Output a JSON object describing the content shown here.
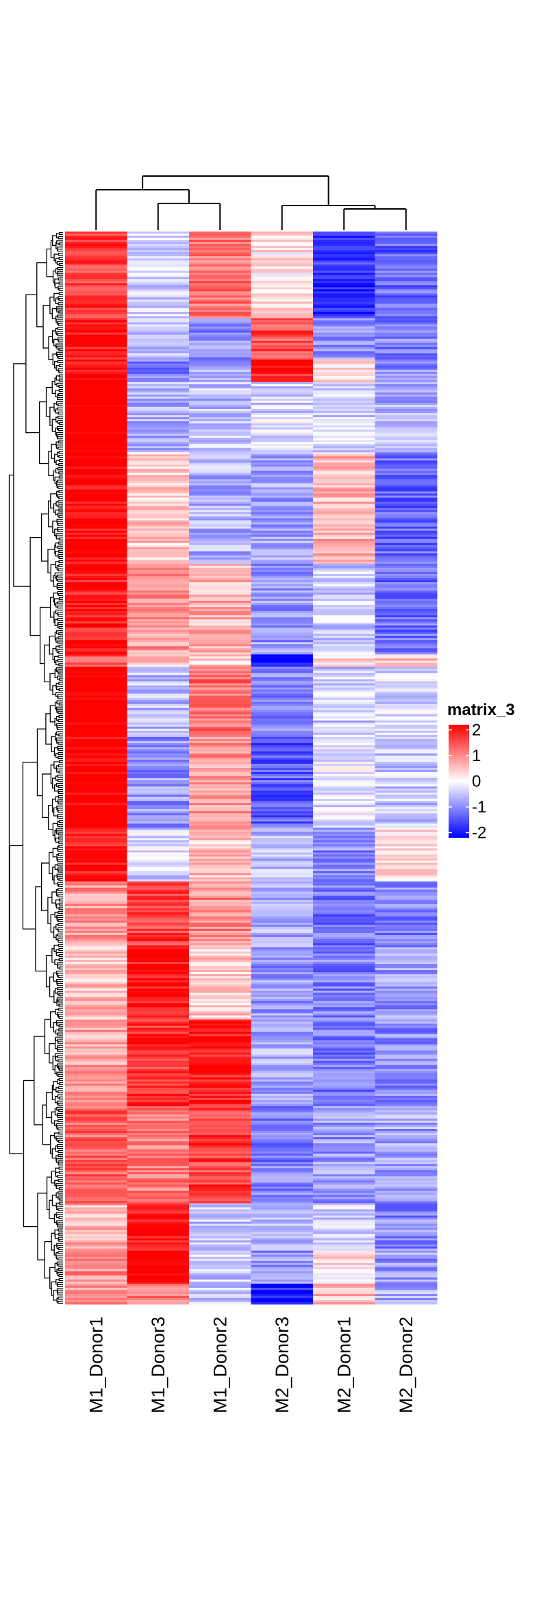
{
  "chart_data": {
    "type": "heatmap",
    "title": "",
    "columns": [
      "M1_Donor1",
      "M1_Donor3",
      "M1_Donor2",
      "M2_Donor3",
      "M2_Donor1",
      "M2_Donor2"
    ],
    "column_dendrogram": {
      "merges": [
        [
          4,
          5
        ],
        [
          1,
          2
        ],
        [
          3,
          "M2_Donor1+M2_Donor2"
        ],
        [
          0,
          "M1_Donor3+M1_Donor2"
        ],
        [
          "M1 group",
          "M2 group"
        ]
      ]
    },
    "row_dendrogram": true,
    "n_rows_approx": 520,
    "value_range": [
      -2.2,
      2.2
    ],
    "colorscale": [
      {
        "value": -2,
        "color": "#0000ff"
      },
      {
        "value": 0,
        "color": "#ffffff"
      },
      {
        "value": 2,
        "color": "#ff0000"
      }
    ],
    "row_blocks": [
      {
        "start": 0.0,
        "end": 0.08,
        "values": [
          1.5,
          -0.3,
          1.1,
          0.2,
          -1.6,
          -1.2
        ]
      },
      {
        "start": 0.08,
        "end": 0.12,
        "values": [
          1.8,
          -0.5,
          -0.9,
          1.4,
          -0.8,
          -1.0
        ]
      },
      {
        "start": 0.12,
        "end": 0.14,
        "values": [
          2.0,
          -1.0,
          -0.7,
          1.8,
          0.3,
          -0.9
        ]
      },
      {
        "start": 0.14,
        "end": 0.205,
        "values": [
          2.3,
          -0.6,
          -0.5,
          -0.3,
          -0.4,
          -0.6
        ]
      },
      {
        "start": 0.205,
        "end": 0.31,
        "values": [
          2.0,
          0.4,
          -0.6,
          -0.7,
          0.6,
          -1.2
        ]
      },
      {
        "start": 0.31,
        "end": 0.395,
        "values": [
          1.8,
          0.8,
          0.6,
          -0.8,
          -0.4,
          -1.1
        ]
      },
      {
        "start": 0.395,
        "end": 0.405,
        "values": [
          1.4,
          0.5,
          0.4,
          -2.0,
          0.3,
          0.6
        ]
      },
      {
        "start": 0.405,
        "end": 0.47,
        "values": [
          2.2,
          -0.5,
          1.1,
          -0.9,
          -0.4,
          -0.3
        ]
      },
      {
        "start": 0.47,
        "end": 0.555,
        "values": [
          2.1,
          -0.8,
          0.8,
          -1.3,
          -0.2,
          -0.4
        ]
      },
      {
        "start": 0.555,
        "end": 0.605,
        "values": [
          1.9,
          -0.3,
          0.5,
          -0.5,
          -0.9,
          0.3
        ]
      },
      {
        "start": 0.605,
        "end": 0.665,
        "values": [
          0.8,
          1.5,
          0.9,
          -0.6,
          -1.1,
          -1.0
        ]
      },
      {
        "start": 0.665,
        "end": 0.735,
        "values": [
          0.5,
          1.9,
          0.4,
          -0.8,
          -1.0,
          -0.8
        ]
      },
      {
        "start": 0.735,
        "end": 0.815,
        "values": [
          0.7,
          1.6,
          1.8,
          -0.7,
          -1.1,
          -0.9
        ]
      },
      {
        "start": 0.815,
        "end": 0.905,
        "values": [
          1.2,
          1.0,
          1.5,
          -1.0,
          -0.8,
          -0.7
        ]
      },
      {
        "start": 0.905,
        "end": 0.95,
        "values": [
          0.6,
          1.9,
          -0.5,
          -0.6,
          -0.3,
          -0.9
        ]
      },
      {
        "start": 0.95,
        "end": 0.98,
        "values": [
          0.9,
          2.1,
          -0.4,
          -0.8,
          0.2,
          -0.8
        ]
      },
      {
        "start": 0.98,
        "end": 1.0,
        "values": [
          0.8,
          1.0,
          -0.4,
          -1.8,
          0.5,
          -0.7
        ]
      }
    ],
    "legend": {
      "title": "matrix_3",
      "ticks": [
        2,
        1,
        0,
        -1,
        -2
      ],
      "placement": "right"
    }
  }
}
